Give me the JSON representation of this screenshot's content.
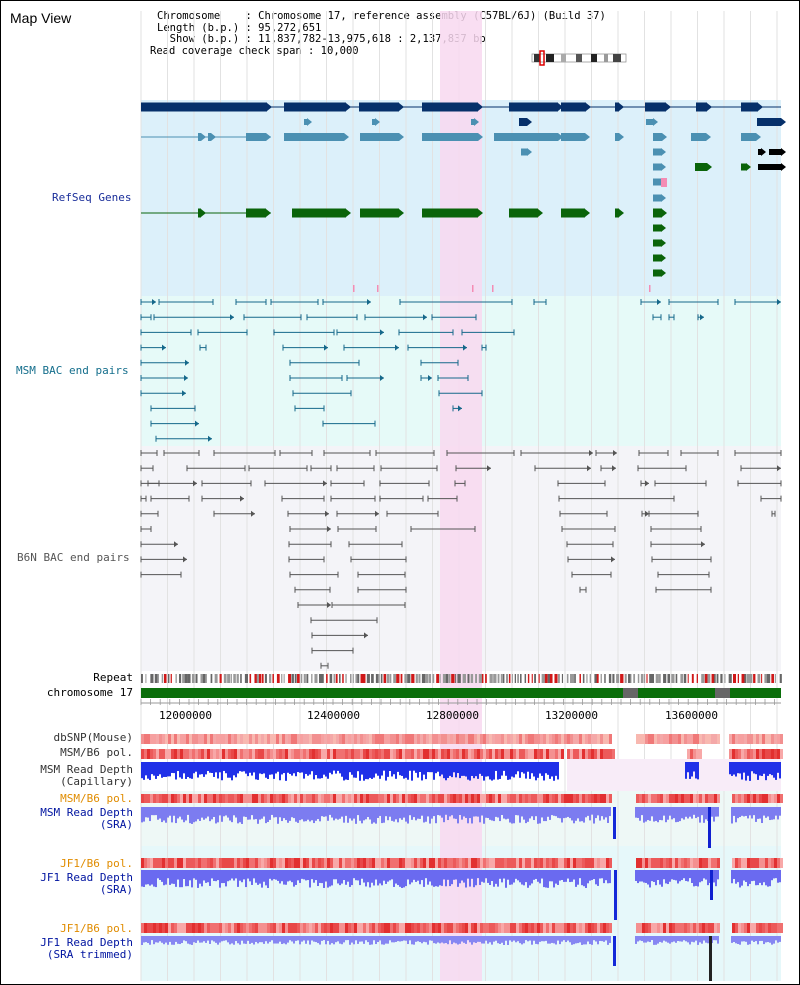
{
  "header": {
    "title": "Map View",
    "chromosome_line": "Chromosome    : Chromosome 17, reference assembly (C57BL/6J) (Build 37)",
    "length_line": "Length (b.p.) : 95,272,651",
    "show_line": "  Show (b.p.) : 11,837,782-13,975,618 : 2,137,837 bp",
    "coverage_line": "Read coverage check span : 10,000"
  },
  "tracks": {
    "refseq_label": "RefSeq Genes",
    "msm_bac_label": "MSM BAC end pairs",
    "b6n_bac_label": "B6N BAC end pairs",
    "repeat_label": "Repeat",
    "chromosome_label": "chromosome 17",
    "dbsnp_label": "dbSNP(Mouse)",
    "msm_b6_pol_label": "MSM/B6 pol.",
    "msm_read_depth_cap_label_1": "MSM Read Depth",
    "msm_read_depth_cap_label_2": "(Capillary)",
    "msm_b6_pol_sra_label": "MSM/B6 pol.",
    "msm_read_depth_sra_label_1": "MSM Read Depth",
    "msm_read_depth_sra_label_2": "(SRA)",
    "jf1_b6_pol_label": "JF1/B6 pol.",
    "jf1_read_depth_label_1": "JF1 Read Depth",
    "jf1_read_depth_label_2": "(SRA)",
    "jf1_b6_pol_trim_label": "JF1/B6 pol.",
    "jf1_trim_label_1": "JF1 Read Depth",
    "jf1_trim_label_2": "(SRA trimmed)"
  },
  "axis": {
    "ticks": [
      "12000000",
      "12400000",
      "12800000",
      "13200000",
      "13600000"
    ]
  },
  "colors": {
    "refseq_bg": "#dcf0fa",
    "bac_bg": "#e6faf8",
    "b6n_bg": "#f4f4f8",
    "highlight": "#f8d8f0",
    "gene_navy": "#06306a",
    "gene_steel": "#4b90b2",
    "gene_green": "#0a640a",
    "msm_bac": "#15688a",
    "b6n_bac": "#555555",
    "label_navy": "#1a2e9a",
    "label_teal": "#146e8c",
    "label_orange": "#e08c00",
    "label_blue": "#0014a0",
    "chrom_green": "#0a6e0a",
    "depth_blue": "#1428f0",
    "depth_light": "#7878f0"
  }
}
